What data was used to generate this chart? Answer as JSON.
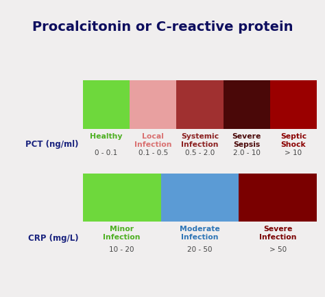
{
  "title": "Procalcitonin or C-reactive protein",
  "title_fontsize": 14,
  "title_color": "#0d0d5e",
  "bg_color": "#f0eeee",
  "pct_label": "PCT (ng/ml)",
  "crp_label": "CRP (mg/L)",
  "label_fontsize": 8.5,
  "label_color": "#1a237e",
  "pct_bars": [
    {
      "color": "#6ed83c",
      "label": "Healthy",
      "sublabel": "0 - 0.1",
      "text_color": "#4caf20"
    },
    {
      "color": "#e8a0a0",
      "label": "Local\nInfection",
      "sublabel": "0.1 - 0.5",
      "text_color": "#d97070"
    },
    {
      "color": "#a03030",
      "label": "Systemic\nInfection",
      "sublabel": "0.5 - 2.0",
      "text_color": "#8b2020"
    },
    {
      "color": "#4a0808",
      "label": "Severe\nSepsis",
      "sublabel": "2.0 - 10",
      "text_color": "#4a0808"
    },
    {
      "color": "#9a0000",
      "label": "Septic\nShock",
      "sublabel": "> 10",
      "text_color": "#8a0000"
    }
  ],
  "crp_bars": [
    {
      "color": "#6ed83c",
      "label": "Minor\nInfection",
      "sublabel": "10 - 20",
      "text_color": "#4caf20"
    },
    {
      "color": "#5b9bd5",
      "label": "Moderate\nInfection",
      "sublabel": "20 - 50",
      "text_color": "#2e75b6"
    },
    {
      "color": "#7a0000",
      "label": "Severe\nInfection",
      "sublabel": "> 50",
      "text_color": "#7a0000"
    }
  ],
  "sublabel_color": "#444444",
  "sublabel_fontsize": 7.5,
  "cat_fontsize": 7.8
}
